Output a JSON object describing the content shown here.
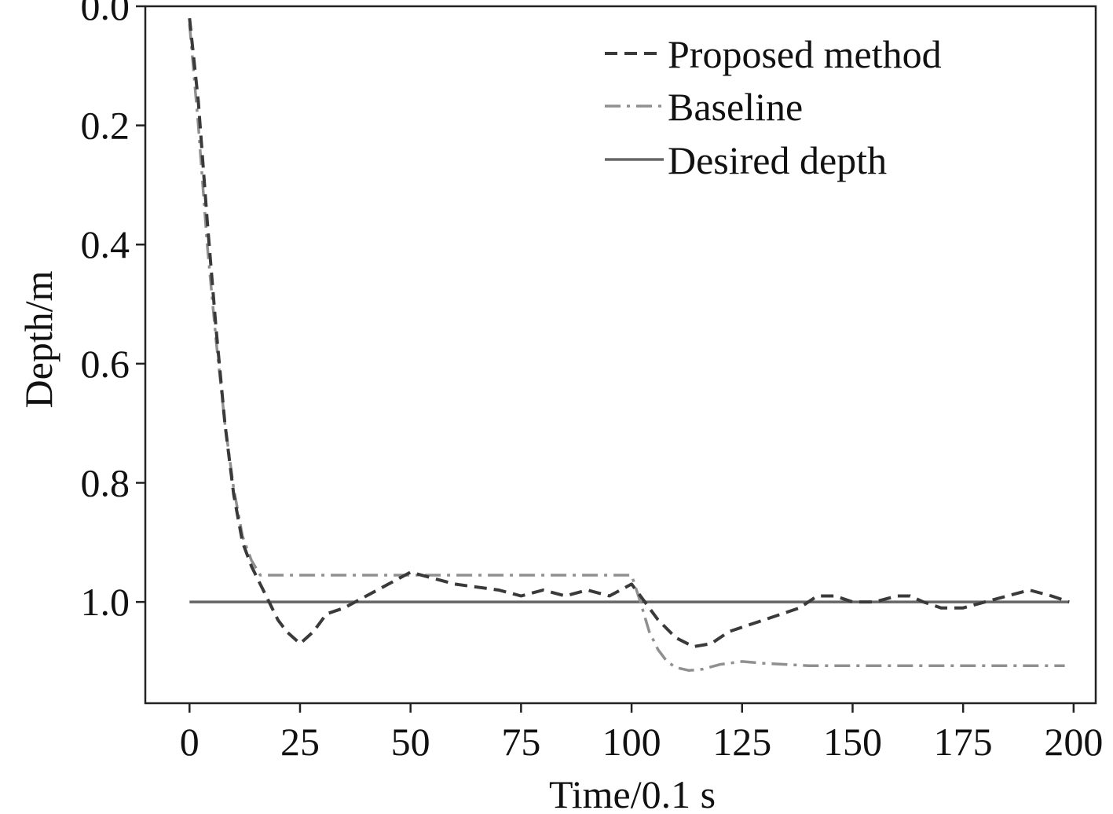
{
  "chart_data": {
    "type": "line",
    "xlabel": "Time/0.1 s",
    "ylabel": "Depth/m",
    "xlim": [
      -10,
      205
    ],
    "ylim": [
      0.0,
      1.17
    ],
    "y_inverted": true,
    "xticks": [
      0,
      25,
      50,
      75,
      100,
      125,
      150,
      175,
      200
    ],
    "xtick_labels": [
      "0",
      "25",
      "50",
      "75",
      "100",
      "125",
      "150",
      "175",
      "200"
    ],
    "yticks": [
      0.0,
      0.2,
      0.4,
      0.6,
      0.8,
      1.0
    ],
    "ytick_labels": [
      "0.0",
      "0.2",
      "0.4",
      "0.6",
      "0.8",
      "1.0"
    ],
    "grid": false,
    "legend_position": "top-right",
    "series": [
      {
        "name": "Proposed method",
        "color": "#3a3a3a",
        "style": "dashed",
        "x": [
          0,
          2,
          4,
          6,
          8,
          10,
          12,
          14,
          16,
          18,
          20,
          22,
          25,
          28,
          31,
          35,
          40,
          45,
          50,
          55,
          60,
          65,
          70,
          75,
          80,
          85,
          90,
          95,
          100,
          103,
          106,
          110,
          114,
          118,
          122,
          126,
          130,
          134,
          138,
          142,
          146,
          150,
          155,
          160,
          163,
          166,
          170,
          175,
          180,
          185,
          190,
          195,
          199
        ],
        "y": [
          0.02,
          0.16,
          0.36,
          0.54,
          0.7,
          0.82,
          0.9,
          0.94,
          0.97,
          1.0,
          1.03,
          1.05,
          1.07,
          1.05,
          1.02,
          1.01,
          0.99,
          0.97,
          0.95,
          0.96,
          0.97,
          0.975,
          0.98,
          0.99,
          0.98,
          0.99,
          0.98,
          0.99,
          0.97,
          1.0,
          1.03,
          1.06,
          1.075,
          1.07,
          1.05,
          1.04,
          1.03,
          1.02,
          1.01,
          0.99,
          0.99,
          1.0,
          1.0,
          0.99,
          0.99,
          1.0,
          1.01,
          1.01,
          1.0,
          0.99,
          0.98,
          0.99,
          1.0
        ]
      },
      {
        "name": "Baseline",
        "color": "#909090",
        "style": "dashdot",
        "x": [
          0,
          2,
          4,
          6,
          8,
          10,
          12,
          14,
          16,
          20,
          30,
          40,
          50,
          60,
          70,
          80,
          90,
          100,
          102,
          104,
          106,
          108,
          110,
          113,
          116,
          120,
          125,
          130,
          140,
          150,
          170,
          198
        ],
        "y": [
          0.03,
          0.2,
          0.4,
          0.56,
          0.7,
          0.81,
          0.89,
          0.93,
          0.955,
          0.955,
          0.955,
          0.955,
          0.955,
          0.955,
          0.955,
          0.955,
          0.955,
          0.955,
          1.0,
          1.05,
          1.08,
          1.1,
          1.11,
          1.115,
          1.113,
          1.105,
          1.1,
          1.103,
          1.107,
          1.107,
          1.107,
          1.107
        ]
      },
      {
        "name": "Desired depth",
        "color": "#666666",
        "style": "solid",
        "x": [
          0,
          199
        ],
        "y": [
          1.0,
          1.0
        ]
      }
    ]
  }
}
